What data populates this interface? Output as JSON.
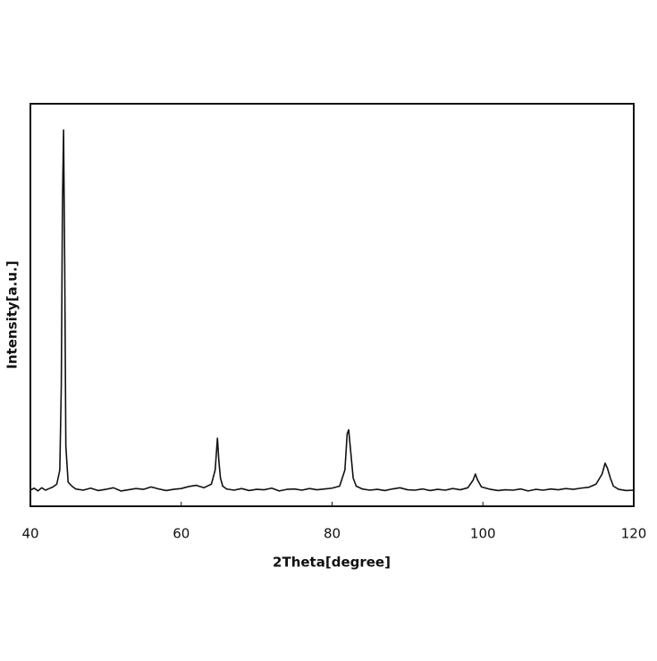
{
  "chart_data": {
    "type": "line",
    "xlabel": "2Theta[degree]",
    "ylabel": "Intensity[a.u.]",
    "color": "#111111",
    "x": [
      40,
      40.5,
      41,
      41.5,
      42,
      42.5,
      43,
      43.5,
      43.9,
      44.1,
      44.25,
      44.4,
      44.55,
      44.7,
      45,
      45.5,
      46,
      47,
      48,
      49,
      50,
      51,
      52,
      53,
      54,
      55,
      56,
      57,
      58,
      59,
      60,
      61,
      62,
      63,
      64,
      64.5,
      64.8,
      65,
      65.2,
      65.5,
      66,
      67,
      68,
      69,
      70,
      71,
      72,
      73,
      74,
      75,
      76,
      77,
      78,
      79,
      80,
      81,
      81.7,
      82,
      82.2,
      82.5,
      82.8,
      83.2,
      84,
      85,
      86,
      87,
      88,
      89,
      90,
      91,
      92,
      93,
      94,
      95,
      96,
      97,
      98,
      98.7,
      99,
      99.3,
      99.8,
      101,
      102,
      103,
      104,
      105,
      106,
      107,
      108,
      109,
      110,
      111,
      112,
      113,
      114,
      115,
      115.8,
      116.2,
      116.5,
      116.9,
      117.3,
      118,
      119,
      120
    ],
    "values": [
      4,
      4.5,
      3.8,
      4.6,
      4,
      4.4,
      4.8,
      5.5,
      9,
      30,
      75,
      93.5,
      60,
      15,
      6,
      5,
      4.3,
      4,
      4.5,
      3.9,
      4.2,
      4.6,
      3.8,
      4.1,
      4.4,
      4.2,
      4.8,
      4.3,
      3.9,
      4.2,
      4.4,
      4.9,
      5.2,
      4.6,
      5.5,
      9,
      16.9,
      11,
      7,
      5,
      4.3,
      4,
      4.4,
      3.9,
      4.2,
      4.1,
      4.5,
      3.8,
      4.2,
      4.3,
      4,
      4.4,
      4.1,
      4.3,
      4.5,
      5,
      9,
      18,
      19,
      13,
      7,
      5,
      4.3,
      4,
      4.2,
      3.9,
      4.3,
      4.6,
      4.1,
      4,
      4.3,
      3.9,
      4.2,
      4,
      4.4,
      4.1,
      4.6,
      6.5,
      8,
      6.5,
      4.8,
      4.2,
      3.9,
      4.1,
      4,
      4.3,
      3.8,
      4.2,
      4,
      4.3,
      4.1,
      4.4,
      4.2,
      4.5,
      4.7,
      5.5,
      8,
      10.7,
      9.5,
      7,
      5,
      4.2,
      3.9,
      4
    ],
    "xlim": [
      40,
      120
    ],
    "xticks": [
      40,
      60,
      80,
      100,
      120
    ],
    "ylim": [
      0,
      100
    ]
  }
}
